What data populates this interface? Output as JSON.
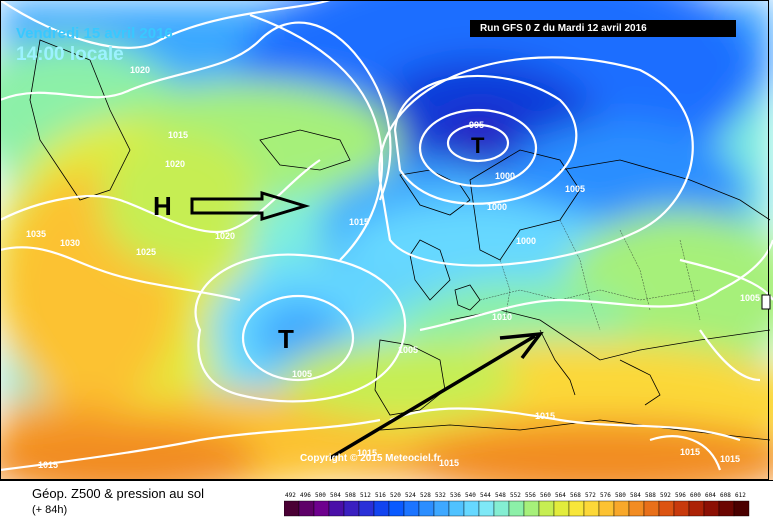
{
  "header": {
    "date_text": "Vendredi 15 avril 2016",
    "time_text": "14:00 locale",
    "run_text": "Run GFS 0 Z du Mardi 12 avril 2016"
  },
  "footer": {
    "field_title": "Géop. Z500 & pression au sol",
    "forecast_range": "(+ 84h)",
    "copyright": "Copyright © 2015 Meteociel.fr"
  },
  "systems": {
    "high_label": "H",
    "low_label_west": "T",
    "low_label_north": "T"
  },
  "isobar_labels": [
    "1020",
    "1015",
    "1020",
    "1035",
    "1030",
    "1025",
    "1020",
    "1015",
    "995",
    "1000",
    "1000",
    "1005",
    "1000",
    "1005",
    "1010",
    "1005",
    "1005",
    "1015",
    "1015",
    "1015",
    "1015",
    "1015",
    "1015"
  ],
  "legend": {
    "values": [
      "492",
      "496",
      "500",
      "504",
      "508",
      "512",
      "516",
      "520",
      "524",
      "528",
      "532",
      "536",
      "540",
      "544",
      "548",
      "552",
      "556",
      "560",
      "564",
      "568",
      "572",
      "576",
      "580",
      "584",
      "588",
      "592",
      "596",
      "600",
      "604",
      "608",
      "612"
    ],
    "colors": [
      "#4a0034",
      "#5e0068",
      "#6e008e",
      "#4a0fa8",
      "#3a1fc0",
      "#2a30d8",
      "#1244f0",
      "#0a5aff",
      "#1c74ff",
      "#2c8eff",
      "#3ea8ff",
      "#50c2ff",
      "#66d8ff",
      "#7ee8f6",
      "#84eed2",
      "#8cf0a8",
      "#a6f07a",
      "#c6ee52",
      "#e2ec3c",
      "#f8e63a",
      "#fcd838",
      "#fcc232",
      "#f8a82a",
      "#f28c22",
      "#e8701a",
      "#dc5412",
      "#c83a0c",
      "#ac2206",
      "#8c1004",
      "#6c0602",
      "#4a0000"
    ]
  }
}
